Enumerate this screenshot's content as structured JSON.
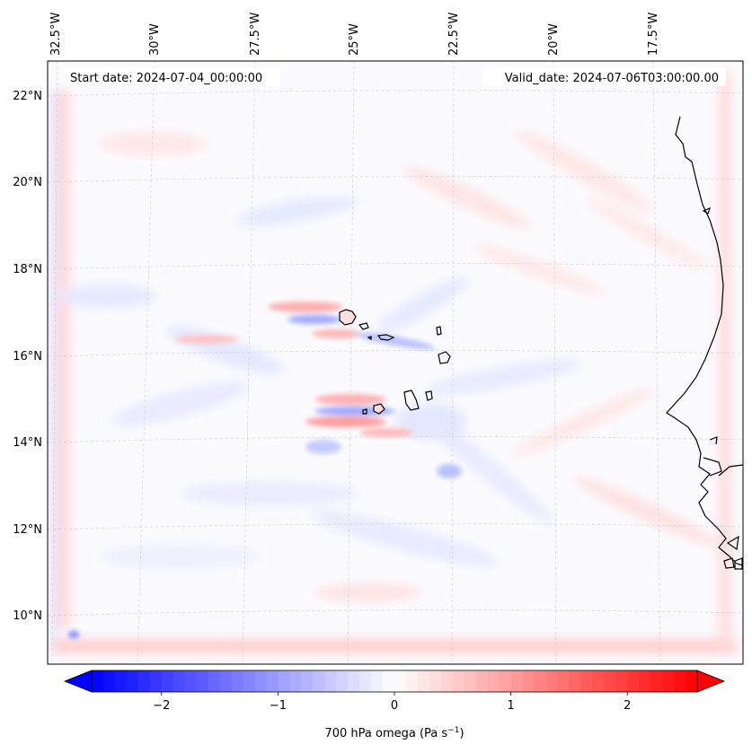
{
  "map": {
    "start_label": "Start date: 2024-07-04_00:00:00",
    "valid_label": "Valid_date: 2024-07-06T03:00:00.00",
    "lon_labels": [
      "32.5°W",
      "30°W",
      "27.5°W",
      "25°W",
      "22.5°W",
      "20°W",
      "17.5°W"
    ],
    "lat_labels": [
      "22°N",
      "20°N",
      "18°N",
      "16°N",
      "14°N",
      "12°N",
      "10°N"
    ]
  },
  "colorbar": {
    "title": "700 hPa omega (Pa s",
    "title_exp": "−1",
    "title_end": ")",
    "ticks": [
      "−2",
      "−1",
      "0",
      "1",
      "2"
    ],
    "tick_values": [
      -2,
      -1,
      0,
      1,
      2
    ],
    "vmin": -2.6,
    "vmax": 2.6,
    "colors": {
      "negative": "#0000ff",
      "zero": "#ffffff",
      "positive": "#ff0000"
    }
  }
}
